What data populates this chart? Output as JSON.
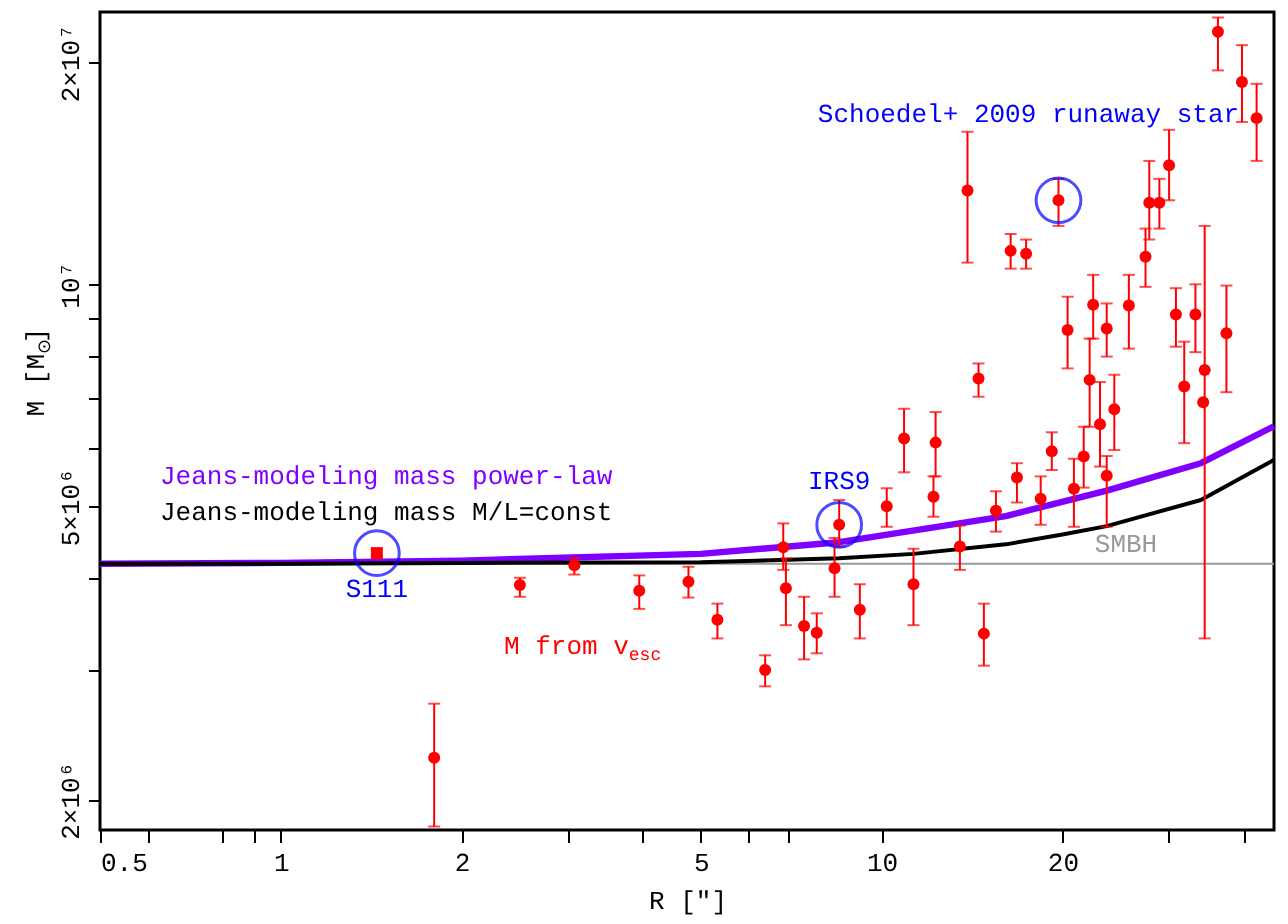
{
  "chart_data": {
    "type": "scatter",
    "xlabel": "R [\"]",
    "ylabel": "M [M$_{⊙}$]",
    "log": "xy",
    "xlim": [
      0.5,
      45
    ],
    "ylim": [
      1820000,
      23400000
    ],
    "xticks": [
      0.5,
      {
        "value": 0.6,
        "label": null
      },
      {
        "value": 0.8,
        "label": null
      },
      {
        "value": 0.9,
        "label": null
      },
      1,
      2,
      {
        "value": 3,
        "label": null
      },
      {
        "value": 4,
        "label": null
      },
      5,
      {
        "value": 6,
        "label": null
      },
      {
        "value": 7,
        "label": null
      },
      10,
      20,
      {
        "value": 30,
        "label": null
      },
      {
        "value": 40,
        "label": null
      }
    ],
    "yticks": [
      {
        "value": 2000000,
        "label": "2×10⁶"
      },
      {
        "value": 3000000,
        "label": null
      },
      {
        "value": 4000000,
        "label": null
      },
      {
        "value": 5000000,
        "label": "5×10⁶"
      },
      {
        "value": 6000000,
        "label": null
      },
      {
        "value": 7000000,
        "label": null
      },
      {
        "value": 8000000,
        "label": null
      },
      {
        "value": 9000000,
        "label": null
      },
      {
        "value": 10000000,
        "label": "10⁷"
      },
      {
        "value": 20000000,
        "label": "2×10⁷"
      }
    ],
    "ref_lines": [
      {
        "axis": "y",
        "value": 4180000,
        "label": "SMBH",
        "color": "#999999"
      }
    ],
    "annotations": [
      {
        "text": "S111",
        "x": 1.445,
        "y": 4320000
      },
      {
        "text": "IRS9",
        "x": 8.5,
        "y": 4720000
      },
      {
        "text": "Schoedel+ 2009 runaway star",
        "x": 19.7,
        "y": 13000000
      }
    ],
    "series": [
      {
        "name": "M from v$_{esc}$",
        "color": "#ff0000",
        "marker": "circle",
        "x": [
          1.8,
          2.5,
          3.08,
          3.95,
          4.77,
          5.33,
          6.4,
          6.86,
          6.93,
          7.43,
          7.8,
          8.35,
          8.5,
          9.2,
          10.2,
          10.9,
          11.3,
          12.2,
          12.3,
          13.5,
          13.9,
          14.5,
          14.8,
          15.5,
          16.4,
          16.8,
          17.4,
          18.4,
          19.2,
          19.7,
          20.4,
          20.9,
          21.7,
          22.2,
          22.5,
          23.1,
          23.7,
          23.7,
          24.4,
          25.8,
          27.5,
          27.9,
          29.0,
          30.1,
          30.9,
          31.9,
          33.3,
          34.3,
          34.5,
          36.3,
          37.5,
          39.8,
          42.1
        ],
        "values": [
          2280000,
          3910000,
          4160000,
          3840000,
          3950000,
          3510000,
          3000000,
          4400000,
          3870000,
          3440000,
          3370000,
          4120000,
          4720000,
          3620000,
          5000000,
          6180000,
          3920000,
          5150000,
          6100000,
          4410000,
          13400000,
          7450000,
          3360000,
          4930000,
          11100000,
          5470000,
          11000000,
          5120000,
          5940000,
          13000000,
          8670000,
          5280000,
          5840000,
          7420000,
          9380000,
          6460000,
          8710000,
          5500000,
          6770000,
          9360000,
          10900000,
          12900000,
          12900000,
          14500000,
          9100000,
          7270000,
          9100000,
          6920000,
          7650000,
          22000000,
          8580000,
          18800000,
          16800000
        ],
        "errors": [
          [
            1840000,
            2700000
          ],
          [
            3770000,
            4000000
          ],
          [
            4040000,
            4260000
          ],
          [
            3630000,
            4030000
          ],
          [
            3760000,
            4140000
          ],
          [
            3310000,
            3690000
          ],
          [
            2850000,
            3140000
          ],
          [
            4100000,
            4740000
          ],
          [
            3450000,
            4250000
          ],
          [
            3100000,
            3770000
          ],
          [
            3160000,
            3580000
          ],
          [
            3770000,
            4530000
          ],
          [
            4410000,
            5100000
          ],
          [
            3310000,
            3920000
          ],
          [
            4690000,
            5290000
          ],
          [
            5560000,
            6780000
          ],
          [
            3450000,
            4380000
          ],
          [
            4840000,
            5490000
          ],
          [
            5490000,
            6710000
          ],
          [
            4100000,
            4710000
          ],
          [
            10700000,
            16100000
          ],
          [
            7040000,
            7810000
          ],
          [
            3040000,
            3690000
          ],
          [
            4620000,
            5240000
          ],
          [
            10500000,
            11700000
          ],
          [
            5060000,
            5720000
          ],
          [
            10500000,
            11500000
          ],
          [
            4720000,
            5490000
          ],
          [
            5600000,
            6300000
          ],
          [
            12000000,
            13900000
          ],
          [
            7690000,
            9620000
          ],
          [
            4690000,
            5800000
          ],
          [
            5300000,
            6410000
          ],
          [
            6410000,
            8440000
          ],
          [
            8440000,
            10300000
          ],
          [
            5660000,
            7370000
          ],
          [
            7980000,
            9420000
          ],
          [
            4690000,
            5850000
          ],
          [
            5960000,
            7540000
          ],
          [
            8180000,
            10300000
          ],
          [
            9920000,
            11900000
          ],
          [
            11500000,
            14700000
          ],
          [
            11900000,
            13900000
          ],
          [
            13000000,
            16200000
          ],
          [
            8230000,
            9880000
          ],
          [
            6090000,
            8360000
          ],
          [
            8090000,
            10000000
          ],
          null,
          [
            3310000,
            12000000
          ],
          [
            19500000,
            23000000
          ],
          [
            7140000,
            9960000
          ],
          [
            16600000,
            21100000
          ],
          [
            14700000,
            18700000
          ]
        ]
      },
      {
        "color": "#ff0000",
        "marker": "square",
        "x": [
          1.445
        ],
        "values": [
          4320000
        ]
      },
      {
        "type": "line",
        "name": "Jeans-modeling mass power-law",
        "color": "#8000ff",
        "x": [
          0.5,
          1,
          2,
          5,
          8.5,
          16.1,
          23.7,
          34,
          45
        ],
        "values": [
          4180000,
          4190000,
          4220000,
          4310000,
          4470000,
          4850000,
          5250000,
          5720000,
          6420000
        ]
      },
      {
        "type": "line",
        "name": "Jeans-modeling mass M/L=const",
        "color": "#000000",
        "x": [
          0.5,
          1,
          2,
          5,
          8.5,
          11.3,
          16.1,
          20,
          23.7,
          34,
          45
        ],
        "values": [
          4180000,
          4180000,
          4190000,
          4200000,
          4250000,
          4310000,
          4440000,
          4580000,
          4700000,
          5100000,
          5780000
        ]
      }
    ]
  }
}
